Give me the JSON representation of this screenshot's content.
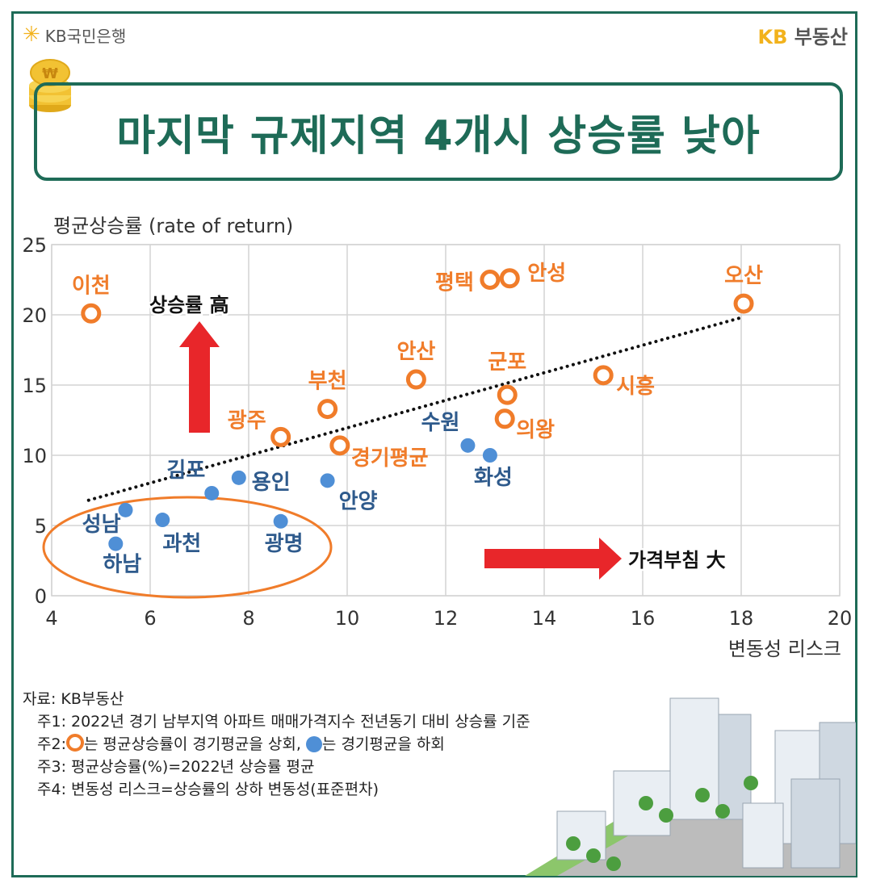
{
  "header": {
    "bank_logo": "KB국민은행",
    "brand_kb": "KB",
    "brand_name": "부동산"
  },
  "title": "마지막 규제지역 4개시 상승률 낮아",
  "chart_data": {
    "type": "scatter",
    "ylabel": "평균상승률 (rate of return)",
    "xlabel": "변동성 리스크",
    "xlim": [
      4,
      20
    ],
    "ylim": [
      0,
      25
    ],
    "xticks": [
      "4",
      "6",
      "8",
      "10",
      "12",
      "14",
      "16",
      "18",
      "20"
    ],
    "yticks": [
      "0",
      "5",
      "10",
      "15",
      "20",
      "25"
    ],
    "grid": true,
    "colors": {
      "above": "#f07c2a",
      "below": "#4f8fd6",
      "label_below": "#2e5a8c"
    },
    "series": [
      {
        "kind": "above",
        "points": [
          {
            "label": "이천",
            "x": 4.8,
            "y": 20.1
          },
          {
            "label": "평택",
            "x": 12.9,
            "y": 22.5
          },
          {
            "label": "안성",
            "x": 13.3,
            "y": 22.6
          },
          {
            "label": "오산",
            "x": 18.05,
            "y": 20.8
          },
          {
            "label": "안산",
            "x": 11.4,
            "y": 15.4
          },
          {
            "label": "부천",
            "x": 9.6,
            "y": 13.3
          },
          {
            "label": "군포",
            "x": 13.25,
            "y": 14.3
          },
          {
            "label": "시흥",
            "x": 15.2,
            "y": 15.7
          },
          {
            "label": "의왕",
            "x": 13.2,
            "y": 12.6
          },
          {
            "label": "광주",
            "x": 8.65,
            "y": 11.3
          },
          {
            "label": "경기평균",
            "x": 9.85,
            "y": 10.7
          }
        ]
      },
      {
        "kind": "below",
        "points": [
          {
            "label": "수원",
            "x": 12.45,
            "y": 10.7
          },
          {
            "label": "화성",
            "x": 12.9,
            "y": 10.0
          },
          {
            "label": "김포",
            "x": 7.25,
            "y": 7.3
          },
          {
            "label": "용인",
            "x": 7.8,
            "y": 8.4
          },
          {
            "label": "안양",
            "x": 9.6,
            "y": 8.2
          },
          {
            "label": "성남",
            "x": 5.5,
            "y": 6.1
          },
          {
            "label": "하남",
            "x": 5.3,
            "y": 3.7
          },
          {
            "label": "과천",
            "x": 6.25,
            "y": 5.4
          },
          {
            "label": "광명",
            "x": 8.65,
            "y": 5.3
          }
        ]
      }
    ],
    "trendline": {
      "x": [
        4.75,
        18.0
      ],
      "y": [
        6.8,
        19.8
      ]
    },
    "annotations": {
      "up_arrow": "상승률 高",
      "right_arrow": "가격부침 大"
    }
  },
  "notes": {
    "source": "자료: KB부동산",
    "n1": "주1: 2022년 경기 남부지역 아파트 매매가격지수 전년동기 대비 상승률 기준",
    "n2_prefix": "주2:",
    "n2_a": "는 평균상승률이 경기평균을 상회,",
    "n2_b": "는 경기평균을 하회",
    "n3": "주3: 평균상승률(%)=2022년 상승률 평균",
    "n4": "주4: 변동성 리스크=상승률의 상하 변동성(표준편차)"
  }
}
